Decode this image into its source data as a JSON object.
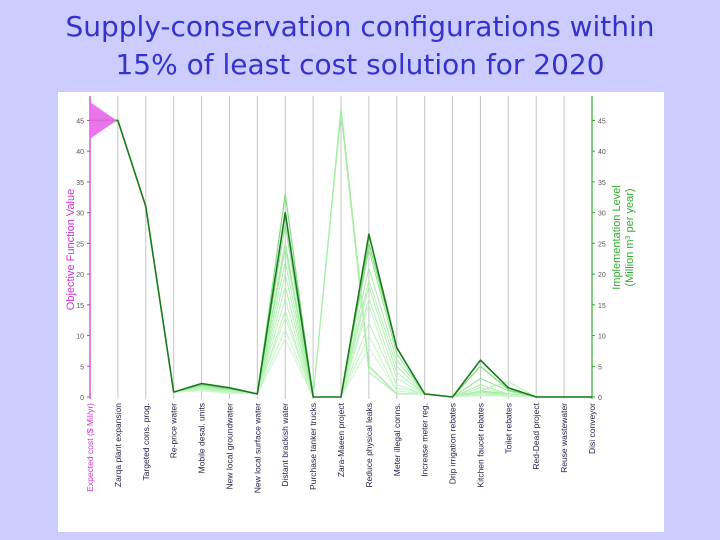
{
  "title_line1": "Supply-conservation configurations within",
  "title_line2": "15% of least cost solution for 2020",
  "chart_data": {
    "type": "line",
    "subtype": "parallel-coordinates",
    "left_axis": {
      "label": "Objective Function Value",
      "color": "#cc33cc",
      "ylim": [
        0,
        48
      ],
      "ticks": [
        0,
        5,
        10,
        15,
        20,
        25,
        30,
        35,
        40,
        45
      ]
    },
    "right_axis": {
      "label_line1": "Implementation Level",
      "label_line2": "(Million m",
      "label_sup": "3",
      "label_line2_end": " per year)",
      "color": "#33aa33",
      "ylim": [
        0,
        48
      ],
      "ticks": [
        0,
        5,
        10,
        15,
        20,
        25,
        30,
        35,
        40,
        45
      ]
    },
    "categories": [
      "Expected cost ($ Mil/yr)",
      "Zarqa plant expansion",
      "Targeted cons. prog.",
      "Re-price water",
      "Mobile desal. units",
      "New local groundwater",
      "New local surface water",
      "Distant brackish water",
      "Purchase tanker trucks",
      "Zara-Maeen project",
      "Reduce physical leaks",
      "Meter illegal conns.",
      "Increase meter reg.",
      "Drip irrigation rebates",
      "Kitchen faucet rebates",
      "Toilet rebates",
      "Red-Dead project",
      "Reuse wastewater",
      "Disi conveyor"
    ],
    "expected_cost_range": [
      42,
      48
    ],
    "series": [
      {
        "values": [
          45,
          45,
          31,
          0.8,
          2.2,
          1.5,
          0.5,
          30,
          0,
          0,
          26.5,
          8,
          0.5,
          0,
          6,
          1.5,
          0,
          0,
          0
        ],
        "color": "#1a7a1a",
        "width": 1.6
      },
      {
        "values": [
          45.5,
          45,
          31,
          0.8,
          2,
          1.3,
          0.5,
          33,
          0,
          0,
          25,
          8,
          0.5,
          0,
          5,
          1.2,
          0,
          0,
          0
        ],
        "color": "#7fdc7f",
        "width": 1.2
      },
      {
        "values": [
          46,
          45,
          31,
          0.8,
          1.8,
          1.2,
          0.5,
          28,
          0,
          0,
          24,
          7,
          0.5,
          0,
          3,
          1,
          0,
          0,
          0
        ],
        "color": "#8fe28f",
        "width": 1
      },
      {
        "values": [
          44,
          45,
          31,
          0.8,
          1.8,
          1.2,
          0.5,
          25,
          0,
          47,
          5,
          0.5,
          0.5,
          0,
          1,
          0.5,
          0,
          0,
          0
        ],
        "color": "#9fe89f",
        "width": 1.2
      },
      {
        "values": [
          44.5,
          45,
          31,
          0.8,
          1.6,
          1.1,
          0.5,
          24,
          0,
          46,
          4,
          0.5,
          0.5,
          0,
          0.8,
          0.3,
          0,
          0,
          0
        ],
        "color": "#aaeeaa",
        "width": 1
      },
      {
        "values": [
          43,
          45,
          31,
          0.8,
          1.5,
          1,
          0.5,
          22,
          0,
          0,
          21,
          6,
          0.5,
          0,
          2,
          0.5,
          0,
          0,
          0
        ],
        "color": "#aaeeaa",
        "width": 1
      },
      {
        "values": [
          47,
          45,
          31,
          0.8,
          1.5,
          1,
          0.5,
          20,
          0,
          0,
          19,
          5,
          0.5,
          0,
          1.5,
          0.5,
          0,
          0,
          0
        ],
        "color": "#b4f0b4",
        "width": 1
      },
      {
        "values": [
          42.5,
          45,
          31,
          0.8,
          1.4,
          1,
          0.5,
          18,
          0,
          0,
          18,
          4,
          0.5,
          0,
          1,
          2.5,
          0,
          0,
          0
        ],
        "color": "#b4f0b4",
        "width": 1
      },
      {
        "values": [
          46.5,
          45,
          31,
          0.8,
          1.3,
          0.9,
          0.5,
          16,
          0,
          0,
          16,
          3,
          0.5,
          0,
          0.5,
          0.3,
          0,
          0,
          0
        ],
        "color": "#bdf2bd",
        "width": 1
      },
      {
        "values": [
          43.5,
          45,
          31,
          0.8,
          1.2,
          0.8,
          0.5,
          14,
          0,
          0,
          12,
          2,
          0.5,
          0,
          0.5,
          0.2,
          0,
          0,
          0
        ],
        "color": "#bdf2bd",
        "width": 1
      },
      {
        "values": [
          45.2,
          45,
          31,
          0.8,
          1.2,
          0.8,
          0.5,
          13,
          0,
          0,
          15,
          1.5,
          0.5,
          0,
          0.3,
          0.2,
          0,
          0,
          0
        ],
        "color": "#c6f4c6",
        "width": 1
      },
      {
        "values": [
          44.2,
          45,
          31,
          0.8,
          1,
          0.7,
          0.5,
          11,
          0,
          0,
          10,
          1,
          0.5,
          0,
          0.3,
          0.1,
          0,
          0,
          0
        ],
        "color": "#c6f4c6",
        "width": 1
      },
      {
        "values": [
          46.2,
          45,
          31,
          0.8,
          1,
          0.6,
          0.5,
          9.5,
          0,
          0,
          8,
          1,
          0.5,
          0,
          0.2,
          0.1,
          0,
          0,
          0
        ],
        "color": "#cff6cf",
        "width": 1
      }
    ],
    "grid": false
  }
}
